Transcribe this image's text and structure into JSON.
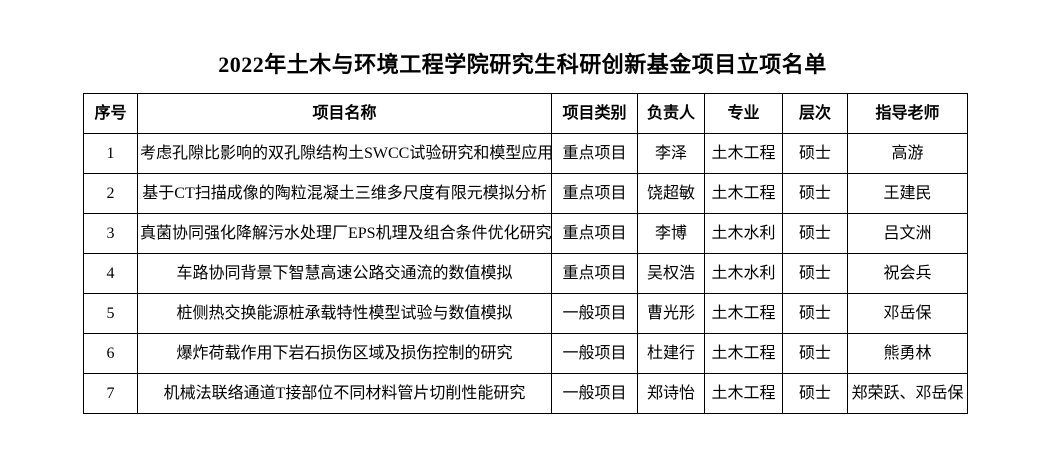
{
  "title": "2022年土木与环境工程学院研究生科研创新基金项目立项名单",
  "table": {
    "headers": [
      "序号",
      "项目名称",
      "项目类别",
      "负责人",
      "专业",
      "层次",
      "指导老师"
    ],
    "rows": [
      [
        "1",
        "考虑孔隙比影响的双孔隙结构土SWCC试验研究和模型应用",
        "重点项目",
        "李泽",
        "土木工程",
        "硕士",
        "高游"
      ],
      [
        "2",
        "基于CT扫描成像的陶粒混凝土三维多尺度有限元模拟分析",
        "重点项目",
        "饶超敏",
        "土木工程",
        "硕士",
        "王建民"
      ],
      [
        "3",
        "真菌协同强化降解污水处理厂EPS机理及组合条件优化研究",
        "重点项目",
        "李博",
        "土木水利",
        "硕士",
        "吕文洲"
      ],
      [
        "4",
        "车路协同背景下智慧高速公路交通流的数值模拟",
        "重点项目",
        "吴权浩",
        "土木水利",
        "硕士",
        "祝会兵"
      ],
      [
        "5",
        "桩侧热交换能源桩承载特性模型试验与数值模拟",
        "一般项目",
        "曹光形",
        "土木工程",
        "硕士",
        "邓岳保"
      ],
      [
        "6",
        "爆炸荷载作用下岩石损伤区域及损伤控制的研究",
        "一般项目",
        "杜建行",
        "土木工程",
        "硕士",
        "熊勇林"
      ],
      [
        "7",
        "机械法联络通道T接部位不同材料管片切削性能研究",
        "一般项目",
        "郑诗怡",
        "土木工程",
        "硕士",
        "郑荣跃、邓岳保"
      ]
    ]
  }
}
